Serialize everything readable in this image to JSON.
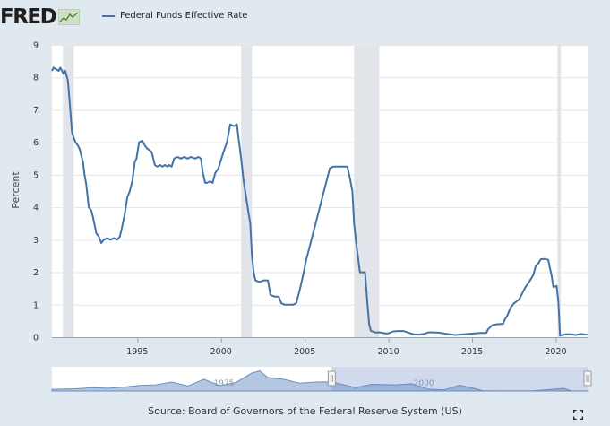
{
  "header": {
    "logo_text": "FRED",
    "logo_icon": "sparkline-icon",
    "legend_label": "Federal Funds Effective Rate",
    "series_color": "#4572a7"
  },
  "chart_data": {
    "type": "line",
    "title": "",
    "series": [
      {
        "name": "Federal Funds Effective Rate",
        "color": "#4572a7",
        "points": [
          [
            1989.9,
            8.2
          ],
          [
            1990.0,
            8.3
          ],
          [
            1990.3,
            8.2
          ],
          [
            1990.4,
            8.3
          ],
          [
            1990.6,
            8.1
          ],
          [
            1990.7,
            8.2
          ],
          [
            1990.85,
            7.9
          ],
          [
            1990.95,
            7.3
          ],
          [
            1991.1,
            6.3
          ],
          [
            1991.3,
            6.0
          ],
          [
            1991.45,
            5.9
          ],
          [
            1991.55,
            5.8
          ],
          [
            1991.75,
            5.4
          ],
          [
            1991.85,
            5.0
          ],
          [
            1991.95,
            4.7
          ],
          [
            1992.1,
            4.0
          ],
          [
            1992.25,
            3.9
          ],
          [
            1992.35,
            3.7
          ],
          [
            1992.55,
            3.2
          ],
          [
            1992.7,
            3.1
          ],
          [
            1992.85,
            2.9
          ],
          [
            1993.0,
            3.0
          ],
          [
            1993.2,
            3.05
          ],
          [
            1993.4,
            3.0
          ],
          [
            1993.6,
            3.05
          ],
          [
            1993.8,
            3.0
          ],
          [
            1993.95,
            3.1
          ],
          [
            1994.05,
            3.3
          ],
          [
            1994.25,
            3.8
          ],
          [
            1994.4,
            4.3
          ],
          [
            1994.55,
            4.5
          ],
          [
            1994.7,
            4.8
          ],
          [
            1994.85,
            5.4
          ],
          [
            1994.95,
            5.5
          ],
          [
            1995.1,
            6.0
          ],
          [
            1995.3,
            6.05
          ],
          [
            1995.45,
            5.9
          ],
          [
            1995.6,
            5.8
          ],
          [
            1995.75,
            5.75
          ],
          [
            1995.85,
            5.7
          ],
          [
            1995.95,
            5.5
          ],
          [
            1996.05,
            5.3
          ],
          [
            1996.2,
            5.25
          ],
          [
            1996.35,
            5.3
          ],
          [
            1996.5,
            5.25
          ],
          [
            1996.65,
            5.3
          ],
          [
            1996.8,
            5.25
          ],
          [
            1996.9,
            5.3
          ],
          [
            1997.05,
            5.25
          ],
          [
            1997.2,
            5.5
          ],
          [
            1997.4,
            5.55
          ],
          [
            1997.6,
            5.5
          ],
          [
            1997.8,
            5.55
          ],
          [
            1998.0,
            5.5
          ],
          [
            1998.2,
            5.55
          ],
          [
            1998.45,
            5.5
          ],
          [
            1998.65,
            5.55
          ],
          [
            1998.8,
            5.5
          ],
          [
            1998.9,
            5.1
          ],
          [
            1999.05,
            4.75
          ],
          [
            1999.15,
            4.75
          ],
          [
            1999.35,
            4.8
          ],
          [
            1999.5,
            4.75
          ],
          [
            1999.65,
            5.05
          ],
          [
            1999.85,
            5.2
          ],
          [
            2000.0,
            5.45
          ],
          [
            2000.15,
            5.7
          ],
          [
            2000.35,
            6.0
          ],
          [
            2000.55,
            6.55
          ],
          [
            2000.75,
            6.5
          ],
          [
            2000.95,
            6.55
          ],
          [
            2001.05,
            6.1
          ],
          [
            2001.2,
            5.5
          ],
          [
            2001.35,
            4.8
          ],
          [
            2001.5,
            4.3
          ],
          [
            2001.65,
            3.8
          ],
          [
            2001.75,
            3.5
          ],
          [
            2001.85,
            2.5
          ],
          [
            2001.95,
            2.0
          ],
          [
            2002.05,
            1.75
          ],
          [
            2002.3,
            1.7
          ],
          [
            2002.55,
            1.75
          ],
          [
            2002.8,
            1.75
          ],
          [
            2002.95,
            1.3
          ],
          [
            2003.2,
            1.25
          ],
          [
            2003.45,
            1.25
          ],
          [
            2003.6,
            1.05
          ],
          [
            2003.8,
            1.0
          ],
          [
            2004.05,
            1.0
          ],
          [
            2004.3,
            1.0
          ],
          [
            2004.5,
            1.05
          ],
          [
            2004.7,
            1.45
          ],
          [
            2004.9,
            1.9
          ],
          [
            2005.1,
            2.4
          ],
          [
            2005.3,
            2.8
          ],
          [
            2005.5,
            3.2
          ],
          [
            2005.7,
            3.6
          ],
          [
            2005.9,
            4.0
          ],
          [
            2006.1,
            4.4
          ],
          [
            2006.3,
            4.8
          ],
          [
            2006.5,
            5.2
          ],
          [
            2006.7,
            5.25
          ],
          [
            2006.9,
            5.25
          ],
          [
            2007.1,
            5.25
          ],
          [
            2007.3,
            5.25
          ],
          [
            2007.55,
            5.25
          ],
          [
            2007.7,
            4.9
          ],
          [
            2007.85,
            4.5
          ],
          [
            2007.95,
            3.5
          ],
          [
            2008.05,
            3.0
          ],
          [
            2008.15,
            2.6
          ],
          [
            2008.3,
            2.0
          ],
          [
            2008.5,
            2.0
          ],
          [
            2008.6,
            2.0
          ],
          [
            2008.75,
            1.0
          ],
          [
            2008.85,
            0.4
          ],
          [
            2008.95,
            0.2
          ],
          [
            2009.2,
            0.15
          ],
          [
            2009.5,
            0.15
          ],
          [
            2009.8,
            0.12
          ],
          [
            2010.0,
            0.12
          ],
          [
            2010.3,
            0.18
          ],
          [
            2010.6,
            0.19
          ],
          [
            2010.9,
            0.19
          ],
          [
            2011.2,
            0.14
          ],
          [
            2011.5,
            0.09
          ],
          [
            2011.8,
            0.08
          ],
          [
            2012.1,
            0.1
          ],
          [
            2012.4,
            0.15
          ],
          [
            2012.7,
            0.15
          ],
          [
            2013.0,
            0.14
          ],
          [
            2013.5,
            0.1
          ],
          [
            2014.0,
            0.07
          ],
          [
            2014.5,
            0.09
          ],
          [
            2015.0,
            0.11
          ],
          [
            2015.5,
            0.13
          ],
          [
            2015.85,
            0.13
          ],
          [
            2015.95,
            0.24
          ],
          [
            2016.2,
            0.37
          ],
          [
            2016.5,
            0.4
          ],
          [
            2016.85,
            0.41
          ],
          [
            2016.95,
            0.54
          ],
          [
            2017.1,
            0.66
          ],
          [
            2017.3,
            0.91
          ],
          [
            2017.5,
            1.04
          ],
          [
            2017.8,
            1.16
          ],
          [
            2017.95,
            1.3
          ],
          [
            2018.15,
            1.51
          ],
          [
            2018.4,
            1.7
          ],
          [
            2018.65,
            1.91
          ],
          [
            2018.8,
            2.19
          ],
          [
            2018.95,
            2.27
          ],
          [
            2019.1,
            2.4
          ],
          [
            2019.35,
            2.41
          ],
          [
            2019.55,
            2.38
          ],
          [
            2019.65,
            2.12
          ],
          [
            2019.75,
            1.9
          ],
          [
            2019.85,
            1.55
          ],
          [
            2020.05,
            1.58
          ],
          [
            2020.15,
            1.1
          ],
          [
            2020.2,
            0.65
          ],
          [
            2020.25,
            0.05
          ],
          [
            2020.6,
            0.09
          ],
          [
            2020.9,
            0.09
          ],
          [
            2021.2,
            0.07
          ],
          [
            2021.5,
            0.1
          ],
          [
            2021.75,
            0.08
          ],
          [
            2021.9,
            0.08
          ]
        ]
      }
    ],
    "recessions": [
      [
        1990.55,
        1991.2
      ],
      [
        2001.2,
        2001.85
      ],
      [
        2007.95,
        2009.45
      ],
      [
        2020.1,
        2020.3
      ]
    ],
    "xlim": [
      1989.9,
      2021.9
    ],
    "ylim": [
      0,
      9
    ],
    "xticks": [
      1995,
      2000,
      2005,
      2010,
      2015,
      2020
    ],
    "xtick_labels": [
      "1995",
      "2000",
      "2005",
      "2010",
      "2015",
      "2020"
    ],
    "yticks": [
      0,
      1,
      2,
      3,
      4,
      5,
      6,
      7,
      8,
      9
    ],
    "ytick_labels": [
      "0",
      "1",
      "2",
      "3",
      "4",
      "5",
      "6",
      "7",
      "8",
      "9"
    ],
    "ylabel": "Percent",
    "xlabel": "",
    "grid": true,
    "navigator": {
      "tick_labels": [
        "1975",
        "2000"
      ],
      "tick_years": [
        1975,
        2000
      ],
      "range": [
        1955,
        2022
      ],
      "selected": [
        1990,
        2022
      ],
      "overview": [
        [
          1955,
          1.5
        ],
        [
          1958,
          2
        ],
        [
          1960,
          3
        ],
        [
          1962,
          2.5
        ],
        [
          1964,
          3.5
        ],
        [
          1966,
          5
        ],
        [
          1968,
          5.5
        ],
        [
          1970,
          8
        ],
        [
          1972,
          4.5
        ],
        [
          1974,
          10.5
        ],
        [
          1976,
          5
        ],
        [
          1978,
          7.5
        ],
        [
          1980,
          16
        ],
        [
          1981,
          18
        ],
        [
          1982,
          12
        ],
        [
          1984,
          10.5
        ],
        [
          1986,
          7
        ],
        [
          1988,
          8
        ],
        [
          1990,
          8.2
        ],
        [
          1993,
          3
        ],
        [
          1995,
          6
        ],
        [
          1998,
          5.5
        ],
        [
          2000,
          6.5
        ],
        [
          2002,
          1.7
        ],
        [
          2004,
          1
        ],
        [
          2006,
          5.2
        ],
        [
          2008,
          2
        ],
        [
          2009,
          0.2
        ],
        [
          2015,
          0.1
        ],
        [
          2017,
          1.2
        ],
        [
          2019,
          2.4
        ],
        [
          2020,
          0.1
        ],
        [
          2022,
          0.1
        ]
      ]
    }
  },
  "footer": {
    "source": "Source: Board of Governors of the Federal Reserve System (US)",
    "expand_icon": "fullscreen-icon"
  }
}
